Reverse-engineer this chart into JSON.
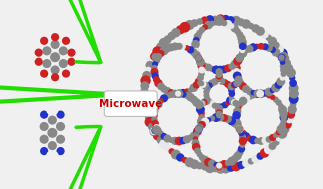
{
  "bg_color": "#f0f0f0",
  "microwave_label": "Microwave",
  "microwave_label_color": "#cc0000",
  "microwave_label_fontsize": 7.5,
  "arrow_color": "#22dd00",
  "figsize": [
    3.23,
    1.89
  ],
  "dpi": 100,
  "cof_colors_weights": [
    0.58,
    0.18,
    0.14,
    0.1
  ],
  "cof_colors": [
    "#888888",
    "#cc2222",
    "#2233cc",
    "#e8e8e8"
  ],
  "mol1_color_grey": "#888888",
  "mol1_color_red": "#cc2222",
  "mol1_color_white": "#f0f0f0",
  "mol2_color_grey": "#888888",
  "mol2_color_blue": "#2233cc",
  "mol2_color_white": "#f0f0f0"
}
